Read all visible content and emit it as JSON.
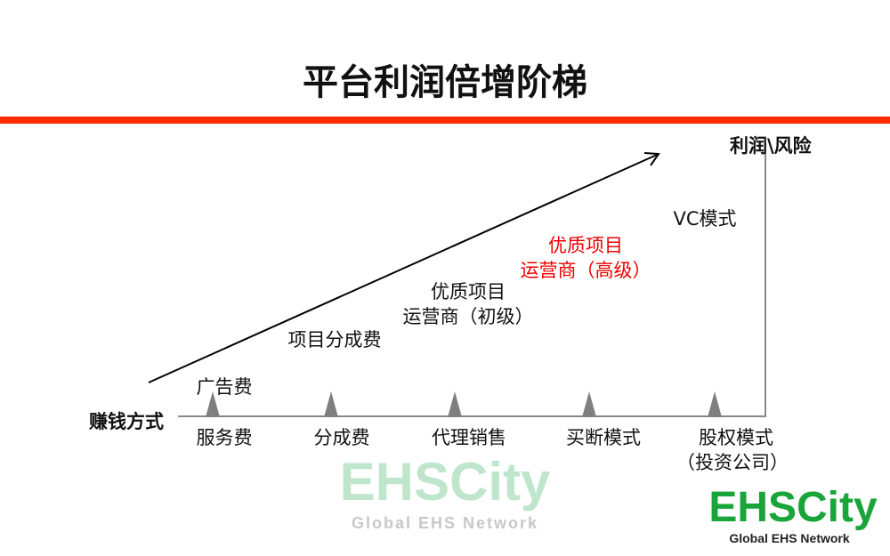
{
  "title": "平台利润倍增阶梯",
  "colors": {
    "accent_bar": "#ff2a00",
    "logo_green": "#1aa53a",
    "watermark_green": "#bfe6cc",
    "highlight_text": "#e00000"
  },
  "axes": {
    "x_label": "赚钱方式",
    "y_label": "利润\\风险"
  },
  "steps": [
    {
      "above": "广告费",
      "below": "服务费"
    },
    {
      "above": "项目分成费",
      "below": "分成费"
    },
    {
      "above_line1": "优质项目",
      "above_line2": "运营商（初级）",
      "below": "代理销售"
    },
    {
      "above_line1": "优质项目",
      "above_line2": "运营商（高级）",
      "below": "买断模式",
      "highlight": true
    },
    {
      "above": "VC模式",
      "below": "股权模式",
      "below_line2": "（投资公司）"
    }
  ],
  "logo": {
    "name": "EHSCity",
    "tagline": "Global EHS Network"
  }
}
